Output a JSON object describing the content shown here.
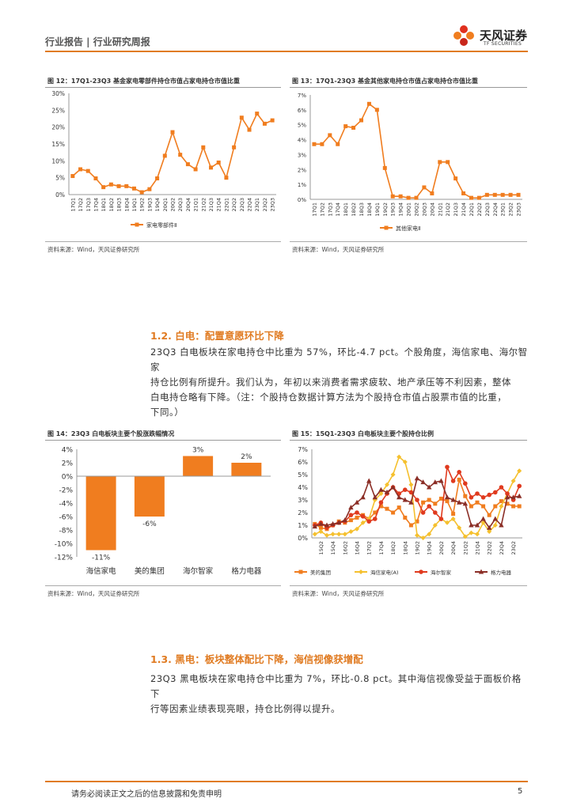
{
  "header": {
    "title": "行业报告 | 行业研究周报",
    "logo_text": "天风证券",
    "logo_sub": "TF SECURITIES"
  },
  "figures": {
    "fig12": {
      "title": "图 12：17Q1-23Q3 基金家电零部件持仓市值占家电持仓市值比重",
      "source": "资料来源：Wind，天风证券研究所"
    },
    "fig13": {
      "title": "图 13：17Q1-23Q3 基金其他家电持仓市值占家电持仓市值比重",
      "source": "资料来源：Wind，天风证券研究所"
    },
    "fig14": {
      "title": "图 14：23Q3 白电板块主要个股涨跌幅情况",
      "source": "资料来源：Wind，天风证券研究所"
    },
    "fig15": {
      "title": "图 15：15Q1-23Q3 白电板块主要个股持仓比例",
      "source": "资料来源：Wind，天风证券研究所"
    }
  },
  "sections": {
    "s12": {
      "title": "1.2. 白电：配置意愿环比下降",
      "lines": [
        "23Q3 白电板块在家电持仓中比重为 57%，环比-4.7 pct。个股角度，海信家电、海尔智家",
        "持仓比例有所提升。我们认为，年初以来消费者需求疲软、地产承压等不利因素，整体",
        "白电持仓略有下降。（注：个股持仓数据计算方法为个股持仓市值占股票市值的比重，",
        "下同。）"
      ]
    },
    "s13": {
      "title": "1.3. 黑电：板块整体配比下降，海信视像获增配",
      "lines": [
        "23Q3 黑电板块在家电持仓中比重为 7%，环比-0.8 pct。其中海信视像受益于面板价格下",
        "行等因素业绩表现亮眼，持仓比例得以提升。"
      ]
    }
  },
  "footer": {
    "disclaimer": "请务必阅读正文之后的信息披露和免责申明",
    "page": "5"
  },
  "chart_data": [
    {
      "id": "fig12",
      "type": "line",
      "x": [
        "17Q1",
        "17Q2",
        "17Q3",
        "17Q4",
        "18Q1",
        "18Q2",
        "18Q3",
        "18Q4",
        "19Q1",
        "19Q2",
        "19Q3",
        "19Q4",
        "20Q1",
        "20Q2",
        "20Q3",
        "20Q4",
        "21Q1",
        "21Q2",
        "21Q3",
        "21Q4",
        "22Q1",
        "22Q2",
        "22Q3",
        "22Q4",
        "23Q1",
        "23Q2",
        "23Q3"
      ],
      "yticks": [
        "0%",
        "5%",
        "10%",
        "15%",
        "20%",
        "25%",
        "30%"
      ],
      "ylim": [
        0,
        30
      ],
      "series": [
        {
          "name": "家电零部件Ⅱ",
          "color": "#f07d1f",
          "values": [
            5.5,
            7.5,
            7,
            4.8,
            2.2,
            3,
            2.5,
            2.5,
            1.8,
            0.7,
            1.6,
            4.8,
            11.5,
            18.5,
            11.8,
            9,
            7.5,
            14,
            8,
            9.5,
            5,
            14,
            22.8,
            19.2,
            24,
            21,
            22
          ]
        }
      ]
    },
    {
      "id": "fig13",
      "type": "line",
      "x": [
        "17Q1",
        "17Q2",
        "17Q3",
        "17Q4",
        "18Q1",
        "18Q2",
        "18Q3",
        "18Q4",
        "19Q1",
        "19Q2",
        "19Q3",
        "19Q4",
        "20Q1",
        "20Q2",
        "20Q3",
        "20Q4",
        "21Q1",
        "21Q2",
        "21Q3",
        "21Q4",
        "22Q1",
        "22Q2",
        "22Q3",
        "22Q4",
        "23Q1",
        "23Q2",
        "23Q3"
      ],
      "yticks": [
        "0%",
        "1%",
        "2%",
        "3%",
        "4%",
        "5%",
        "6%",
        "7%"
      ],
      "ylim": [
        0,
        7
      ],
      "series": [
        {
          "name": "其他家电Ⅱ",
          "color": "#f07d1f",
          "values": [
            3.7,
            3.7,
            4.3,
            3.7,
            4.9,
            4.8,
            5.3,
            6.4,
            6,
            2.1,
            0.2,
            0.2,
            0.1,
            0.1,
            0.8,
            0.4,
            2.5,
            2.5,
            1.4,
            0.4,
            0.1,
            0.1,
            0.3,
            0.3,
            0.3,
            0.3,
            0.3
          ]
        }
      ]
    },
    {
      "id": "fig14",
      "type": "bar",
      "categories": [
        "海信家电",
        "美的集团",
        "海尔智家",
        "格力电器"
      ],
      "values": [
        -11,
        -6,
        3,
        2
      ],
      "labels": [
        "-11%",
        "-6%",
        "3%",
        "2%"
      ],
      "yticks": [
        "4%",
        "2%",
        "0%",
        "-2%",
        "-4%",
        "-6%",
        "-8%",
        "-10%",
        "-12%"
      ],
      "ylim": [
        -12,
        4
      ],
      "color": "#f07d1f"
    },
    {
      "id": "fig15",
      "type": "line",
      "x": [
        "15Q1",
        "15Q2",
        "15Q3",
        "15Q4",
        "16Q1",
        "16Q2",
        "16Q3",
        "16Q4",
        "17Q1",
        "17Q2",
        "17Q3",
        "17Q4",
        "18Q1",
        "18Q2",
        "18Q3",
        "18Q4",
        "19Q1",
        "19Q2",
        "19Q3",
        "19Q4",
        "20Q1",
        "20Q2",
        "20Q3",
        "20Q4",
        "21Q1",
        "21Q2",
        "21Q3",
        "21Q4",
        "22Q1",
        "22Q2",
        "22Q3",
        "22Q4",
        "23Q1",
        "23Q2",
        "23Q3"
      ],
      "xticks": [
        "15Q2",
        "15Q4",
        "16Q2",
        "16Q4",
        "17Q2",
        "17Q4",
        "18Q2",
        "18Q4",
        "19Q2",
        "19Q4",
        "20Q2",
        "20Q4",
        "21Q2",
        "21Q4",
        "22Q2",
        "22Q4",
        "23Q2"
      ],
      "yticks": [
        "0%",
        "1%",
        "2%",
        "3%",
        "4%",
        "5%",
        "6%",
        "7%"
      ],
      "ylim": [
        0,
        7
      ],
      "series": [
        {
          "name": "美的集团",
          "color": "#f07d1f",
          "marker": "square",
          "values": [
            1.1,
            0.8,
            0.7,
            1.0,
            1.3,
            1.2,
            1.4,
            1.6,
            1.8,
            1.5,
            2.0,
            2.5,
            2.3,
            2.0,
            2.4,
            1.6,
            1.0,
            1.3,
            2.8,
            3.0,
            2.7,
            3.1,
            2.9,
            1.9,
            4.6,
            3.3,
            2.5,
            2.8,
            2.5,
            1.8,
            2.5,
            2.9,
            2.7,
            2.5,
            2.5
          ]
        },
        {
          "name": "海信家电(A)",
          "color": "#f5c02e",
          "marker": "diamond",
          "values": [
            0.3,
            0.5,
            0.2,
            0.3,
            0.3,
            0.3,
            0.5,
            0.7,
            1.2,
            1.5,
            3.0,
            3.5,
            4.2,
            5.0,
            6.4,
            6.0,
            4.2,
            0.2,
            0.0,
            0.3,
            1.0,
            1.5,
            1.2,
            1.5,
            0.8,
            0.1,
            0.4,
            0.3,
            1.2,
            0.5,
            1.0,
            2.5,
            3.5,
            4.5,
            5.3
          ]
        },
        {
          "name": "海尔智家",
          "color": "#e03a1e",
          "marker": "circle",
          "values": [
            1.0,
            1.2,
            0.8,
            1.0,
            1.2,
            1.3,
            1.8,
            2.0,
            1.7,
            1.3,
            1.5,
            2.8,
            3.5,
            4.0,
            3.5,
            3.8,
            3.6,
            3.0,
            2.0,
            2.5,
            2.0,
            1.5,
            5.6,
            4.5,
            5.2,
            4.3,
            3.2,
            3.5,
            3.2,
            3.4,
            3.6,
            4.0,
            3.5,
            3.0,
            4.1
          ]
        },
        {
          "name": "格力电器",
          "color": "#8b2e26",
          "marker": "triangle",
          "values": [
            0.9,
            1.1,
            1.0,
            1.1,
            1.2,
            1.4,
            2.4,
            2.8,
            3.2,
            4.5,
            3.2,
            3.8,
            3.6,
            4.0,
            3.2,
            3.0,
            2.8,
            4.7,
            4.4,
            4.0,
            4.4,
            4.5,
            3.2,
            3.0,
            2.8,
            2.7,
            1.0,
            1.0,
            1.5,
            0.8,
            1.5,
            1.0,
            3.2,
            3.2,
            3.3
          ]
        }
      ]
    }
  ]
}
